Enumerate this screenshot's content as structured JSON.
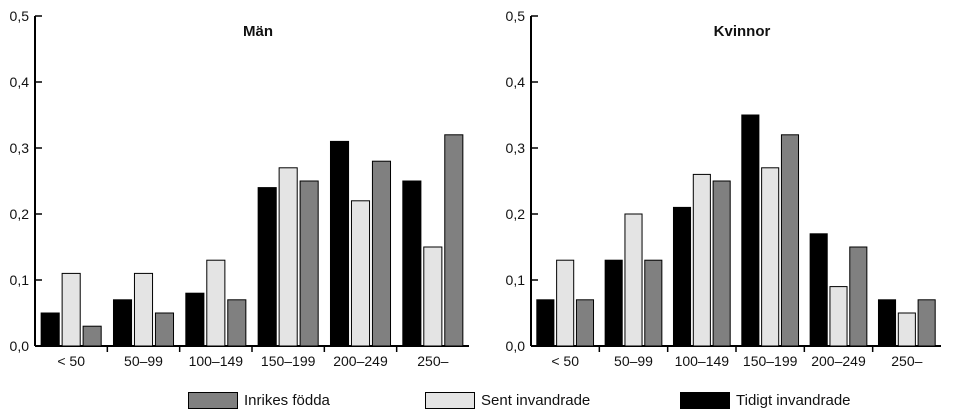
{
  "chart_data": [
    {
      "type": "bar",
      "title": "Män",
      "categories": [
        "< 50",
        "50–99",
        "100–149",
        "150–199",
        "200–249",
        "250–"
      ],
      "series": [
        {
          "name": "Tidigt invandrade",
          "color": "#000000",
          "values": [
            0.05,
            0.07,
            0.08,
            0.24,
            0.31,
            0.25
          ]
        },
        {
          "name": "Sent invandrade",
          "color": "#e4e4e4",
          "values": [
            0.11,
            0.11,
            0.13,
            0.27,
            0.22,
            0.15
          ]
        },
        {
          "name": "Inrikes födda",
          "color": "#808080",
          "values": [
            0.03,
            0.05,
            0.07,
            0.25,
            0.28,
            0.32
          ]
        }
      ],
      "ylim": [
        0,
        0.5
      ],
      "yticks": [
        "0,0",
        "0,1",
        "0,2",
        "0,3",
        "0,4",
        "0,5"
      ],
      "xlabel": "",
      "ylabel": "",
      "grid": false
    },
    {
      "type": "bar",
      "title": "Kvinnor",
      "categories": [
        "< 50",
        "50–99",
        "100–149",
        "150–199",
        "200–249",
        "250–"
      ],
      "series": [
        {
          "name": "Tidigt invandrade",
          "color": "#000000",
          "values": [
            0.07,
            0.13,
            0.21,
            0.35,
            0.17,
            0.07
          ]
        },
        {
          "name": "Sent invandrade",
          "color": "#e4e4e4",
          "values": [
            0.13,
            0.2,
            0.26,
            0.27,
            0.09,
            0.05
          ]
        },
        {
          "name": "Inrikes födda",
          "color": "#808080",
          "values": [
            0.07,
            0.13,
            0.25,
            0.32,
            0.15,
            0.07
          ]
        }
      ],
      "ylim": [
        0,
        0.5
      ],
      "yticks": [
        "0,0",
        "0,1",
        "0,2",
        "0,3",
        "0,4",
        "0,5"
      ],
      "xlabel": "",
      "ylabel": "",
      "grid": false
    }
  ],
  "legend": {
    "placement": "bottom",
    "items": [
      {
        "label": "Inrikes födda",
        "color": "#808080"
      },
      {
        "label": "Sent invandrade",
        "color": "#e4e4e4"
      },
      {
        "label": "Tidigt invandrade",
        "color": "#000000"
      }
    ]
  }
}
